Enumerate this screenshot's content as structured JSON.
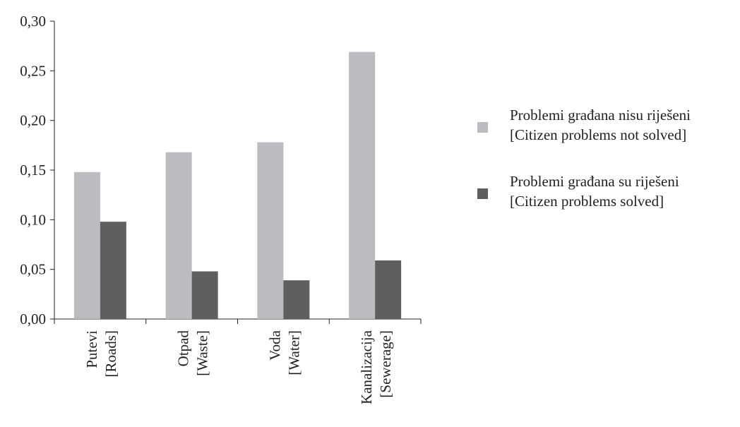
{
  "chart_data": {
    "type": "bar",
    "categories": [
      [
        "Putevi",
        "[Roads]"
      ],
      [
        "Otpad",
        "[Waste]"
      ],
      [
        "Voda",
        "[Water]"
      ],
      [
        "Kanalizacija",
        "[Sewerage]"
      ]
    ],
    "series": [
      {
        "name": [
          "Problemi građana nisu riješeni",
          "[Citizen problems not solved]"
        ],
        "values": [
          0.148,
          0.168,
          0.178,
          0.269
        ],
        "color": "#bcbcc0"
      },
      {
        "name": [
          "Problemi građana su riješeni",
          "[Citizen problems solved]"
        ],
        "values": [
          0.098,
          0.048,
          0.039,
          0.059
        ],
        "color": "#5f5f5f"
      }
    ],
    "yticks": [
      "0,00",
      "0,05",
      "0,10",
      "0,15",
      "0,20",
      "0,25",
      "0,30"
    ],
    "ylim": [
      0,
      0.3
    ],
    "grid": false,
    "legend_position": "right",
    "title": "",
    "xlabel": "",
    "ylabel": ""
  }
}
